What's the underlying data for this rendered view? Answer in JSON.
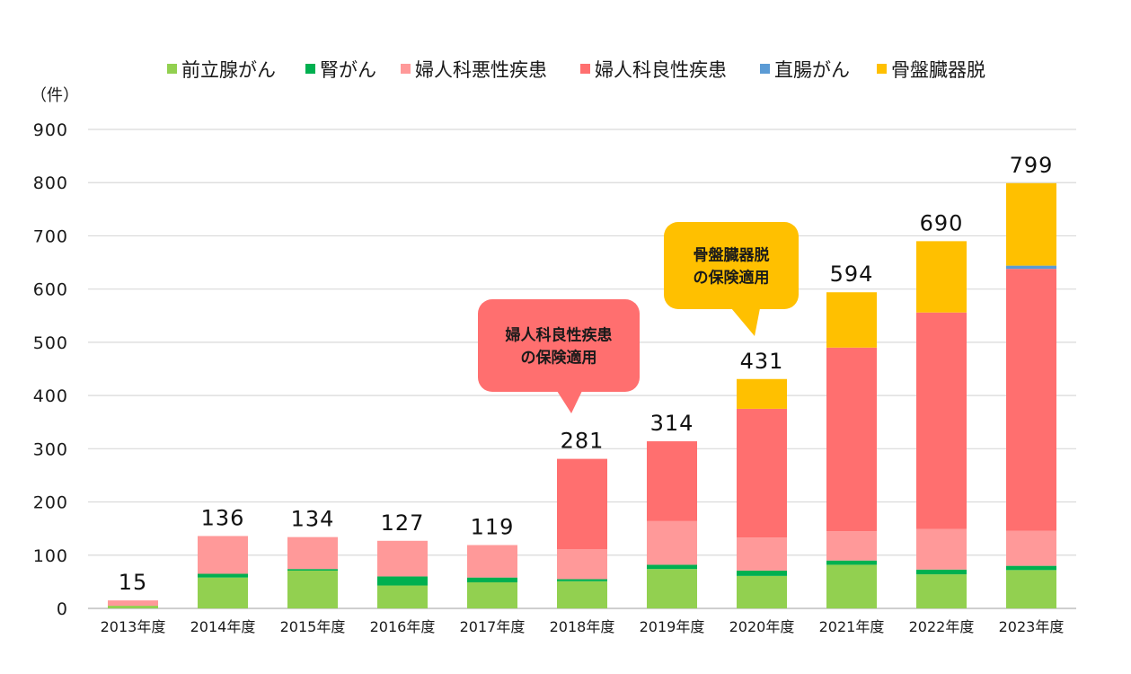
{
  "chart_data": {
    "type": "bar",
    "stacked": true,
    "unit_label": "（件）",
    "categories": [
      "2013年度",
      "2014年度",
      "2015年度",
      "2016年度",
      "2017年度",
      "2018年度",
      "2019年度",
      "2020年度",
      "2021年度",
      "2022年度",
      "2023年度"
    ],
    "series": [
      {
        "name": "前立腺がん",
        "color": "#92d050",
        "values": [
          5,
          58,
          71,
          43,
          49,
          51,
          74,
          61,
          82,
          64,
          72
        ]
      },
      {
        "name": "腎がん",
        "color": "#00b050",
        "values": [
          0,
          7,
          3,
          17,
          9,
          4,
          8,
          10,
          8,
          9,
          8
        ]
      },
      {
        "name": "婦人科悪性疾患",
        "color": "#ff9999",
        "values": [
          10,
          71,
          60,
          67,
          61,
          56,
          82,
          62,
          55,
          76,
          66
        ]
      },
      {
        "name": "婦人科良性疾患",
        "color": "#ff6f6f",
        "values": [
          0,
          0,
          0,
          0,
          0,
          170,
          150,
          242,
          345,
          407,
          492
        ]
      },
      {
        "name": "直腸がん",
        "color": "#5b9bd5",
        "values": [
          0,
          0,
          0,
          0,
          0,
          0,
          0,
          0,
          0,
          0,
          6
        ]
      },
      {
        "name": "骨盤臓器脱",
        "color": "#ffc000",
        "values": [
          0,
          0,
          0,
          0,
          0,
          0,
          0,
          56,
          104,
          134,
          155
        ]
      }
    ],
    "totals": [
      15,
      136,
      134,
      127,
      119,
      281,
      314,
      431,
      594,
      690,
      799
    ],
    "ylim": [
      0,
      900
    ],
    "yticks": [
      0,
      100,
      200,
      300,
      400,
      500,
      600,
      700,
      800,
      900
    ],
    "grid": true,
    "legend_position": "top",
    "annotations": [
      {
        "lines": [
          "婦人科良性疾患",
          "の保険適用"
        ],
        "category": "2018年度",
        "color": "#ff6f6f"
      },
      {
        "lines": [
          "骨盤臓器脱",
          "の保険適用"
        ],
        "category": "2020年度",
        "color": "#ffc000"
      }
    ]
  }
}
